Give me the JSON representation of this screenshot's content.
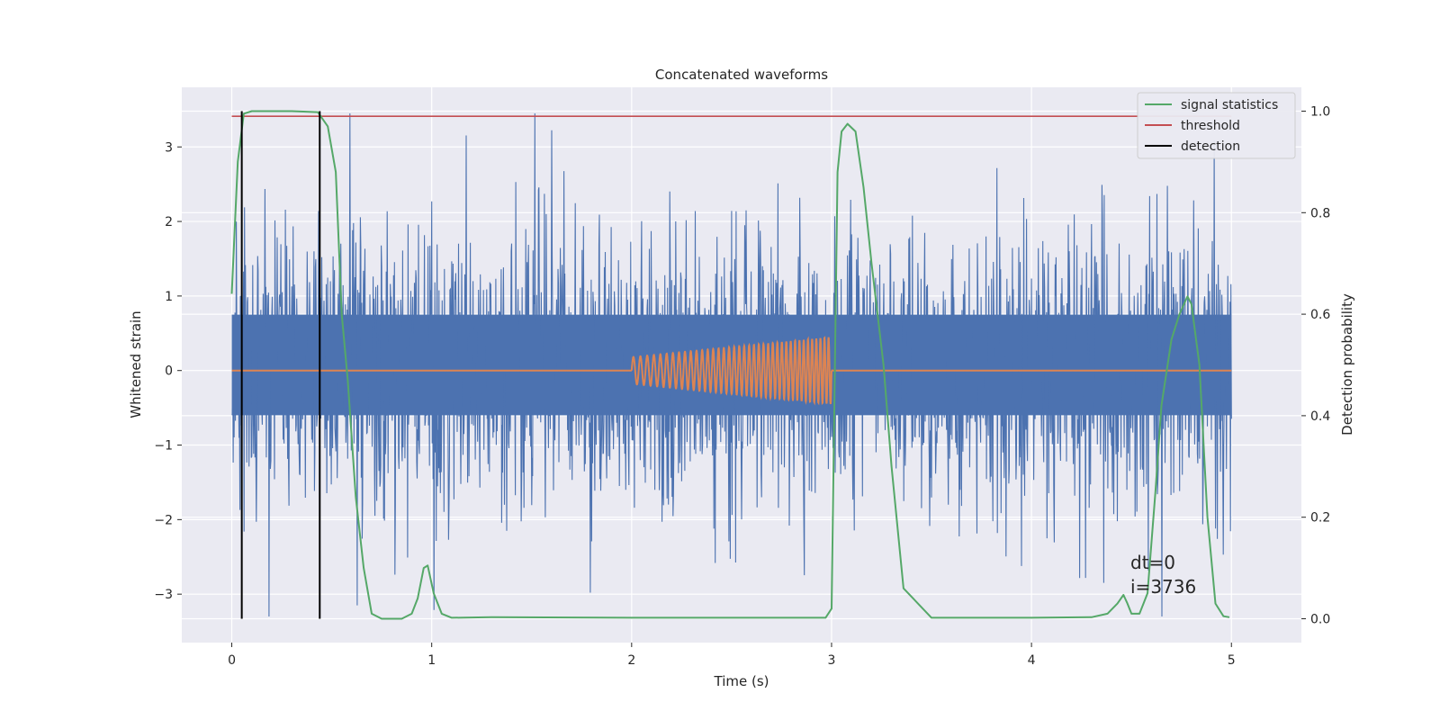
{
  "chart_data": {
    "type": "line",
    "title": "Concatenated waveforms",
    "xlabel": "Time (s)",
    "ylabel": "Whitened strain",
    "y2label": "Detection probability",
    "xlim": [
      -0.25,
      5.35
    ],
    "ylim": [
      -3.65,
      3.8
    ],
    "y2lim": [
      -0.047,
      1.047
    ],
    "xticks": [
      "0",
      "1",
      "2",
      "3",
      "4",
      "5"
    ],
    "yticks": [
      "3",
      "2",
      "1",
      "0",
      "−1",
      "−2",
      "−3"
    ],
    "y2ticks": [
      "1.0",
      "0.8",
      "0.6",
      "0.4",
      "0.2",
      "0.0"
    ],
    "grid": true,
    "legend_position": "top-right",
    "series": [
      {
        "name": "",
        "role": "noise",
        "color": "#4c72b0",
        "x_range": [
          0,
          5
        ],
        "amplitude_range": [
          -3.3,
          3.45
        ],
        "description": "dense whitened strain noise"
      },
      {
        "name": "",
        "role": "injected-chirp",
        "color": "#dd8452",
        "x_range": [
          2.0,
          3.0
        ],
        "amplitude_range": [
          -0.45,
          0.45
        ]
      },
      {
        "name": "signal statistics",
        "color": "#55a868",
        "axis": "right",
        "x": [
          0.0,
          0.03,
          0.06,
          0.1,
          0.15,
          0.3,
          0.43,
          0.48,
          0.52,
          0.55,
          0.58,
          0.62,
          0.66,
          0.7,
          0.75,
          0.85,
          0.9,
          0.93,
          0.96,
          0.98,
          1.01,
          1.05,
          1.1,
          1.3,
          2.0,
          2.5,
          2.97,
          3.0,
          3.03,
          3.05,
          3.08,
          3.12,
          3.16,
          3.2,
          3.26,
          3.3,
          3.36,
          3.5,
          4.0,
          4.3,
          4.38,
          4.43,
          4.46,
          4.48,
          4.5,
          4.54,
          4.58,
          4.62,
          4.65,
          4.7,
          4.74,
          4.78,
          4.8,
          4.84,
          4.88,
          4.92,
          4.96,
          4.99
        ],
        "y": [
          0.64,
          0.9,
          0.995,
          1.0,
          1.0,
          1.0,
          0.998,
          0.97,
          0.88,
          0.6,
          0.47,
          0.24,
          0.1,
          0.01,
          0.0,
          0.0,
          0.01,
          0.04,
          0.1,
          0.105,
          0.05,
          0.01,
          0.002,
          0.003,
          0.002,
          0.002,
          0.002,
          0.02,
          0.88,
          0.96,
          0.975,
          0.96,
          0.85,
          0.7,
          0.5,
          0.3,
          0.06,
          0.002,
          0.002,
          0.003,
          0.01,
          0.03,
          0.047,
          0.03,
          0.01,
          0.01,
          0.05,
          0.25,
          0.42,
          0.55,
          0.6,
          0.635,
          0.62,
          0.5,
          0.2,
          0.03,
          0.005,
          0.003
        ]
      },
      {
        "name": "threshold",
        "color": "#c44e52",
        "axis": "right",
        "x": [
          0,
          5
        ],
        "y": [
          0.99,
          0.99
        ]
      },
      {
        "name": "detection",
        "color": "#000000",
        "axis": "right",
        "x": [
          0.05,
          0.44
        ],
        "y": [
          0.0,
          1.0
        ]
      }
    ],
    "annotation": [
      "dt=0",
      "i=3736"
    ]
  }
}
